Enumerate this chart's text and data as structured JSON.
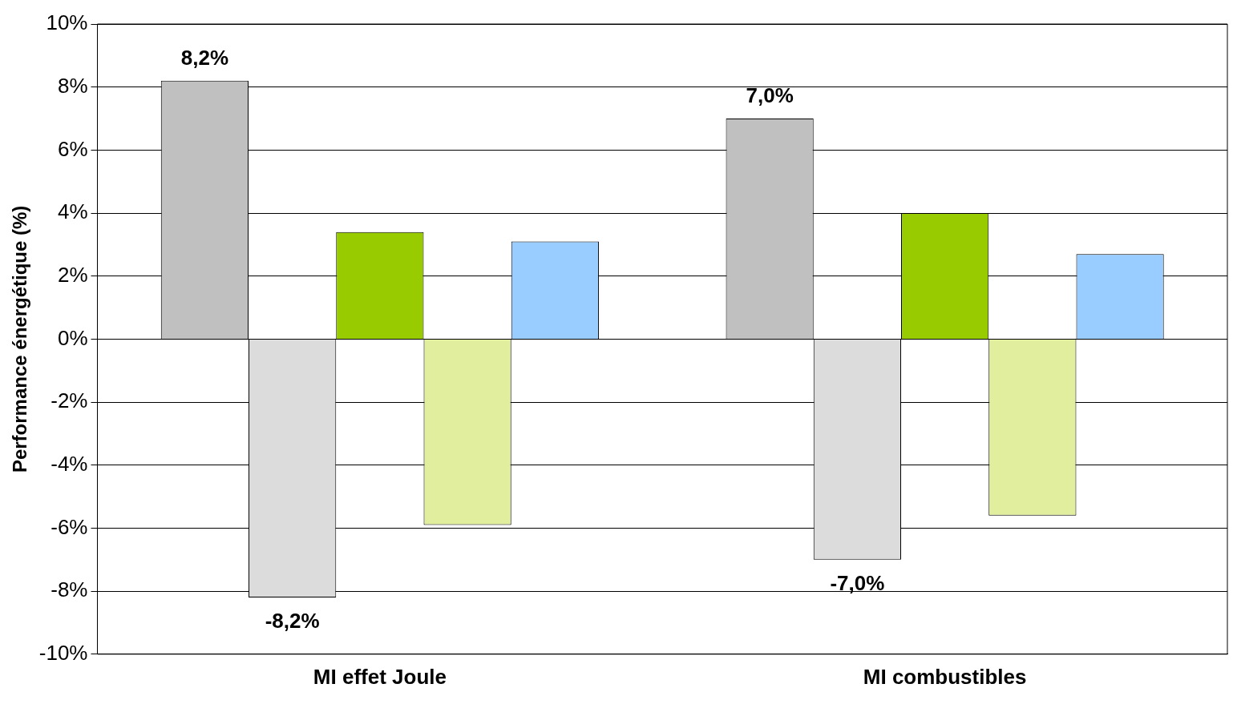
{
  "chart_data": {
    "type": "bar",
    "ylabel": "Performance énergétique (%)",
    "categories": [
      "MI effet Joule",
      "MI combustibles"
    ],
    "series": [
      {
        "color": "#c0c0c0",
        "values": [
          8.2,
          7.0
        ],
        "value_labels": [
          "8,2%",
          "7,0%"
        ]
      },
      {
        "color": "#dcdcdc",
        "values": [
          -8.2,
          -7.0
        ],
        "value_labels": [
          "-8,2%",
          "-7,0%"
        ]
      },
      {
        "color": "#99cc00",
        "values": [
          3.4,
          4.0
        ]
      },
      {
        "color": "#e1ee9e",
        "values": [
          -5.9,
          -5.6
        ]
      },
      {
        "color": "#99ccff",
        "values": [
          3.1,
          2.7
        ]
      }
    ],
    "ylim": [
      -10,
      10
    ],
    "yticks": [
      {
        "value": -10,
        "label": "-10%"
      },
      {
        "value": -8,
        "label": "-8%"
      },
      {
        "value": -6,
        "label": "-6%"
      },
      {
        "value": -4,
        "label": "-4%"
      },
      {
        "value": -2,
        "label": "-2%"
      },
      {
        "value": 0,
        "label": "0%"
      },
      {
        "value": 2,
        "label": "2%"
      },
      {
        "value": 4,
        "label": "4%"
      },
      {
        "value": 6,
        "label": "6%"
      },
      {
        "value": 8,
        "label": "8%"
      },
      {
        "value": 10,
        "label": "10%"
      }
    ],
    "grid": "y",
    "legend": false
  }
}
